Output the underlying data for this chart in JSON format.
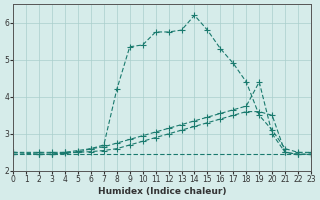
{
  "xlabel": "Humidex (Indice chaleur)",
  "ylabel": "",
  "background_color": "#d6ecea",
  "grid_color": "#aacfcc",
  "line_color": "#1a7a6e",
  "xlim": [
    0,
    23
  ],
  "ylim": [
    2,
    6.5
  ],
  "yticks": [
    2,
    3,
    4,
    5,
    6
  ],
  "xticks": [
    0,
    1,
    2,
    3,
    4,
    5,
    6,
    7,
    8,
    9,
    10,
    11,
    12,
    13,
    14,
    15,
    16,
    17,
    18,
    19,
    20,
    21,
    22,
    23
  ],
  "series": [
    {
      "x": [
        0,
        2,
        3,
        4,
        5,
        6,
        7,
        8,
        9,
        10,
        11,
        12,
        13,
        14,
        15,
        16,
        17,
        18,
        19,
        20,
        21,
        22,
        23
      ],
      "y": [
        2.5,
        2.5,
        2.5,
        2.5,
        2.5,
        2.6,
        2.7,
        4.2,
        5.35,
        5.4,
        5.75,
        5.75,
        5.8,
        6.2,
        5.8,
        5.3,
        4.9,
        4.4,
        3.5,
        3.1,
        2.6,
        2.5,
        2.5
      ]
    },
    {
      "x": [
        0,
        2,
        3,
        4,
        5,
        6,
        7,
        8,
        9,
        10,
        11,
        12,
        13,
        14,
        15,
        16,
        17,
        18,
        19,
        20,
        21,
        22,
        23
      ],
      "y": [
        2.5,
        2.45,
        2.45,
        2.5,
        2.55,
        2.6,
        2.65,
        2.75,
        2.85,
        2.95,
        3.05,
        3.15,
        3.25,
        3.35,
        3.45,
        3.55,
        3.65,
        3.75,
        4.4,
        3.0,
        2.5,
        2.45,
        2.45
      ]
    },
    {
      "x": [
        0,
        2,
        3,
        4,
        5,
        6,
        7,
        8,
        9,
        10,
        11,
        12,
        13,
        14,
        15,
        16,
        17,
        18,
        19,
        20,
        21,
        22,
        23
      ],
      "y": [
        2.45,
        2.45,
        2.45,
        2.48,
        2.5,
        2.52,
        2.55,
        2.6,
        2.7,
        2.8,
        2.9,
        3.0,
        3.1,
        3.2,
        3.3,
        3.4,
        3.5,
        3.6,
        3.6,
        3.5,
        2.5,
        2.45,
        2.45
      ]
    },
    {
      "x": [
        0,
        2,
        3,
        22,
        23
      ],
      "y": [
        2.45,
        2.45,
        2.45,
        2.45,
        2.45
      ]
    }
  ]
}
